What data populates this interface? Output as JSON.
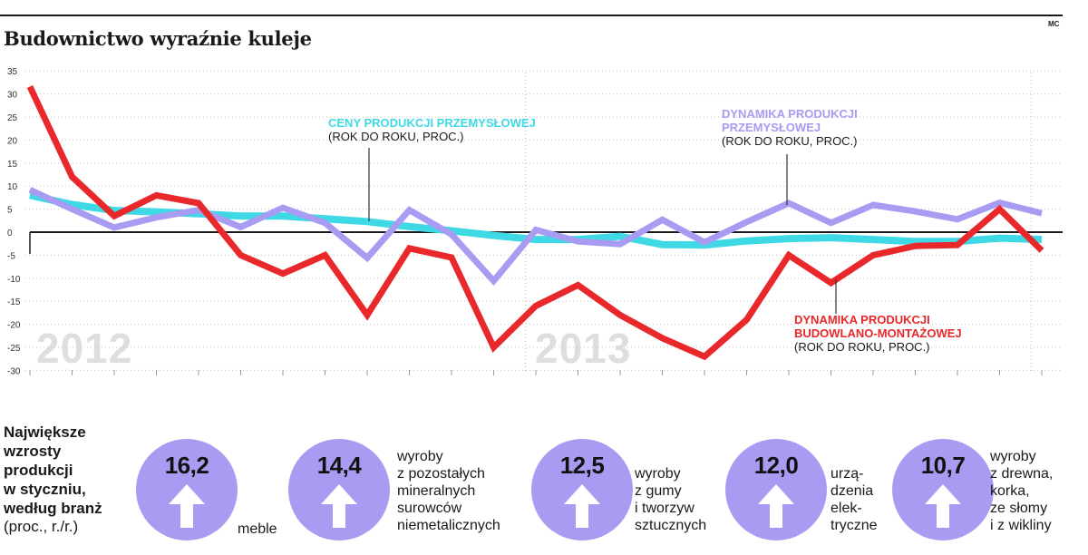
{
  "title": "Budownictwo wyraźnie kuleje",
  "credit": "MC",
  "chart_data": {
    "type": "line",
    "ylim": [
      -30,
      35
    ],
    "yticks": [
      35,
      30,
      25,
      20,
      15,
      10,
      5,
      0,
      -5,
      -10,
      -15,
      -20,
      -25,
      -30
    ],
    "year_labels": [
      "2012",
      "2013"
    ],
    "grid": "dotted horizontal",
    "series": [
      {
        "key": "ceny",
        "name": "CENY PRODUKCJI PRZEMYSŁOWEJ",
        "subtitle": "(ROK DO ROKU, PROC.)",
        "color": "#3fd9e6",
        "values": [
          8.0,
          6.0,
          4.7,
          4.4,
          4.0,
          3.5,
          3.5,
          2.9,
          2.3,
          1.2,
          0.3,
          -0.7,
          -1.6,
          -1.6,
          -0.9,
          -2.7,
          -2.8,
          -1.9,
          -1.4,
          -1.2,
          -1.6,
          -2.0,
          -2.0,
          -1.3,
          -1.6
        ]
      },
      {
        "key": "przemyslowa",
        "name": "DYNAMIKA PRODUKCJI\nPRZEMYSŁOWEJ",
        "subtitle": "(ROK DO ROKU, PROC.)",
        "color": "#a79cf2",
        "values": [
          9.2,
          5.0,
          1.0,
          3.2,
          4.8,
          1.1,
          5.3,
          2.0,
          -5.6,
          4.8,
          -0.5,
          -10.6,
          0.5,
          -2.0,
          -2.6,
          2.7,
          -2.2,
          2.2,
          6.3,
          2.0,
          5.9,
          4.5,
          2.8,
          6.4,
          4.1
        ]
      },
      {
        "key": "budowlana",
        "name": "DYNAMIKA PRODUKCJI\nBUDOWLANO-MONTAŻOWEJ",
        "subtitle": "(ROK DO ROKU, PROC.)",
        "color": "#e8282b",
        "values": [
          31.6,
          12.0,
          3.5,
          8.0,
          6.3,
          -5.0,
          -9.0,
          -5.0,
          -18.0,
          -3.5,
          -5.5,
          -25.0,
          -16.0,
          -11.5,
          -18.0,
          -23.0,
          -27.0,
          -19.0,
          -5.0,
          -11.0,
          -5.0,
          -3.0,
          -2.8,
          5.0,
          -4.0
        ]
      }
    ]
  },
  "stats": {
    "heading": "Największe\nwzrosty\nprodukcji\nw styczniu,\nwedług branż",
    "unit": "(proc., r./r.)",
    "items": [
      {
        "value": "16,2",
        "label": "meble"
      },
      {
        "value": "14,4",
        "label": "wyroby\nz pozostałych\nmineralnych\nsurowców\nniemetalicznych"
      },
      {
        "value": "12,5",
        "label": "wyroby\nz gumy\ni tworzyw\nsztucznych"
      },
      {
        "value": "12,0",
        "label": "urzą-\ndzenia\nelek-\ntryczne"
      },
      {
        "value": "10,7",
        "label": "wyroby\nz drewna,\nkorka,\nze słomy\ni z wikliny"
      }
    ],
    "circle_color": "#a79cf2",
    "arrow_color": "#ffffff"
  }
}
